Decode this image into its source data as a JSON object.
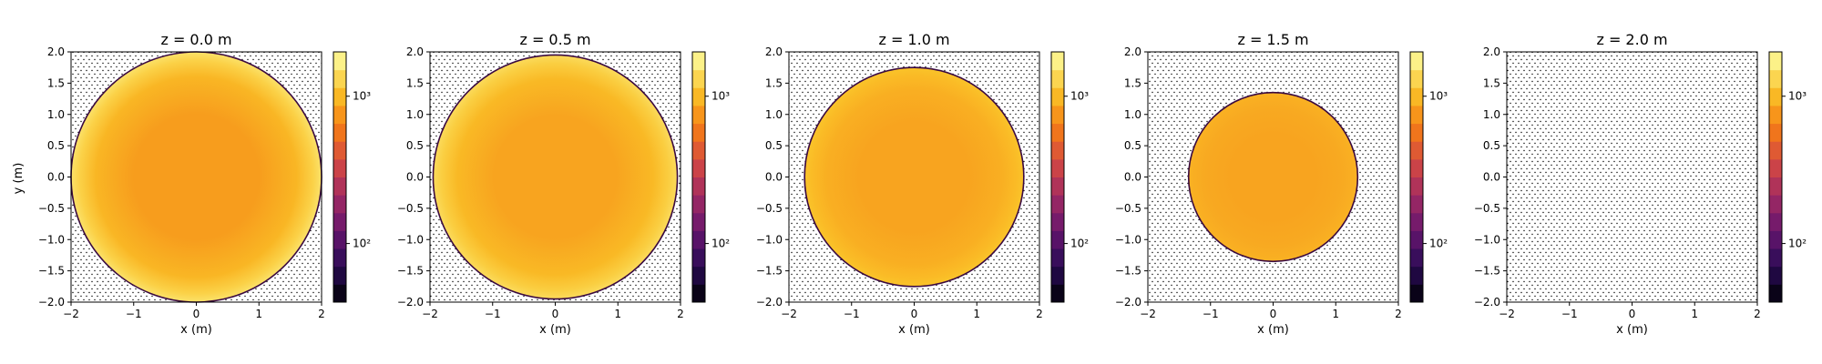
{
  "figure": {
    "y_axis_label": "y (m)"
  },
  "chart_data": [
    {
      "type": "heatmap",
      "title": "z = 0.0 m",
      "xlabel": "x (m)",
      "ylabel": "y (m)",
      "xlim": [
        -2,
        2
      ],
      "ylim": [
        -2,
        2
      ],
      "xticks": [
        "−2",
        "−1",
        "0",
        "1",
        "2"
      ],
      "yticks": [
        "2.0",
        "1.5",
        "1.0",
        "0.5",
        "0.0",
        "−0.5",
        "−1.0",
        "−1.5",
        "−2.0"
      ],
      "circle_radius": 2.0,
      "center_value": 800,
      "edge_value": 1500,
      "colorbar": {
        "scale": "log",
        "ticks": [
          "10³",
          "10²"
        ]
      }
    },
    {
      "type": "heatmap",
      "title": "z = 0.5 m",
      "xlabel": "x (m)",
      "ylabel": "",
      "xlim": [
        -2,
        2
      ],
      "ylim": [
        -2,
        2
      ],
      "xticks": [
        "−2",
        "−1",
        "0",
        "1",
        "2"
      ],
      "yticks": [
        "2.0",
        "1.5",
        "1.0",
        "0.5",
        "0.0",
        "−0.5",
        "−1.0",
        "−1.5",
        "−2.0"
      ],
      "circle_radius": 1.95,
      "center_value": 850,
      "edge_value": 1400,
      "colorbar": {
        "scale": "log",
        "ticks": [
          "10³",
          "10²"
        ]
      }
    },
    {
      "type": "heatmap",
      "title": "z = 1.0 m",
      "xlabel": "x (m)",
      "ylabel": "",
      "xlim": [
        -2,
        2
      ],
      "ylim": [
        -2,
        2
      ],
      "xticks": [
        "−2",
        "−1",
        "0",
        "1",
        "2"
      ],
      "yticks": [
        "2.0",
        "1.5",
        "1.0",
        "0.5",
        "0.0",
        "−0.5",
        "−1.0",
        "−1.5",
        "−2.0"
      ],
      "circle_radius": 1.75,
      "center_value": 850,
      "edge_value": 1100,
      "colorbar": {
        "scale": "log",
        "ticks": [
          "10³",
          "10²"
        ]
      }
    },
    {
      "type": "heatmap",
      "title": "z = 1.5 m",
      "xlabel": "x (m)",
      "ylabel": "",
      "xlim": [
        -2,
        2
      ],
      "ylim": [
        -2,
        2
      ],
      "xticks": [
        "−2",
        "−1",
        "0",
        "1",
        "2"
      ],
      "yticks": [
        "2.0",
        "1.5",
        "1.0",
        "0.5",
        "0.0",
        "−0.5",
        "−1.0",
        "−1.5",
        "−2.0"
      ],
      "circle_radius": 1.35,
      "center_value": 850,
      "edge_value": 950,
      "colorbar": {
        "scale": "log",
        "ticks": [
          "10³",
          "10²"
        ]
      }
    },
    {
      "type": "heatmap",
      "title": "z = 2.0 m",
      "xlabel": "x (m)",
      "ylabel": "",
      "xlim": [
        -2,
        2
      ],
      "ylim": [
        -2,
        2
      ],
      "xticks": [
        "−2",
        "−1",
        "0",
        "1",
        "2"
      ],
      "yticks": [
        "2.0",
        "1.5",
        "1.0",
        "0.5",
        "0.0",
        "−0.5",
        "−1.0",
        "−1.5",
        "−2.0"
      ],
      "circle_radius": 0,
      "center_value": null,
      "edge_value": null,
      "colorbar": {
        "scale": "log",
        "ticks": [
          "10³",
          "10²"
        ]
      }
    }
  ],
  "colors": {
    "colormap": "inferno",
    "background_hatch": "#000000"
  }
}
